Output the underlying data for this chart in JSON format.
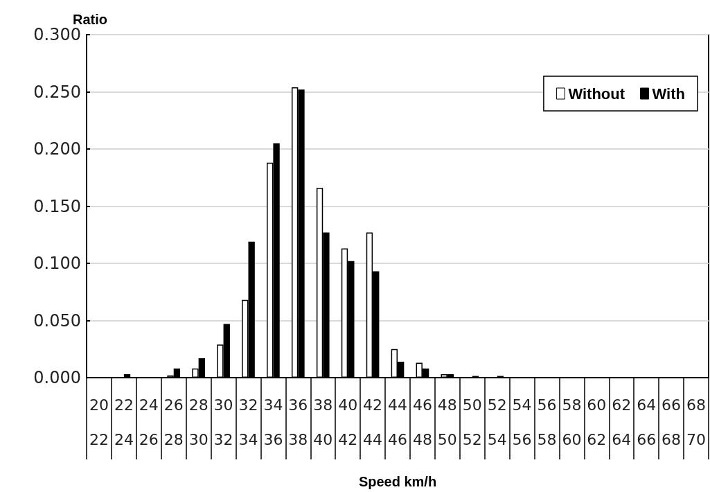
{
  "chart_data": {
    "type": "bar",
    "ylabel": "Ratio",
    "xlabel": "Speed km/h",
    "categories": [
      "20\n22",
      "22\n24",
      "24\n26",
      "26\n28",
      "28\n30",
      "30\n32",
      "32\n34",
      "34\n36",
      "36\n38",
      "38\n40",
      "40\n42",
      "42\n44",
      "44\n46",
      "46\n48",
      "48\n50",
      "50\n52",
      "52\n54",
      "54\n56",
      "56\n58",
      "58\n60",
      "60\n62",
      "62\n64",
      "64\n66",
      "66\n68",
      "68\n70"
    ],
    "series": [
      {
        "name": "Without",
        "color": "#ffffff",
        "values": [
          0,
          0,
          0,
          0.002,
          0.008,
          0.029,
          0.068,
          0.188,
          0.254,
          0.166,
          0.113,
          0.127,
          0.025,
          0.013,
          0.003,
          0,
          0,
          0,
          0,
          0,
          0,
          0,
          0,
          0,
          0
        ]
      },
      {
        "name": "With",
        "color": "#000000",
        "values": [
          0,
          0.003,
          0,
          0.008,
          0.017,
          0.047,
          0.119,
          0.205,
          0.252,
          0.127,
          0.102,
          0.093,
          0.014,
          0.008,
          0.003,
          0.0015,
          0.0015,
          0,
          0,
          0,
          0,
          0,
          0,
          0,
          0
        ]
      }
    ],
    "ylim": [
      0,
      0.3
    ],
    "yticks": [
      {
        "value": 0,
        "label": "0.000"
      },
      {
        "value": 0.05,
        "label": "0.050"
      },
      {
        "value": 0.1,
        "label": "0.100"
      },
      {
        "value": 0.15,
        "label": "0.150"
      },
      {
        "value": 0.2,
        "label": "0.200"
      },
      {
        "value": 0.25,
        "label": "0.250"
      },
      {
        "value": 0.3,
        "label": "0.300"
      }
    ],
    "grid": "y",
    "legend": "top right"
  }
}
